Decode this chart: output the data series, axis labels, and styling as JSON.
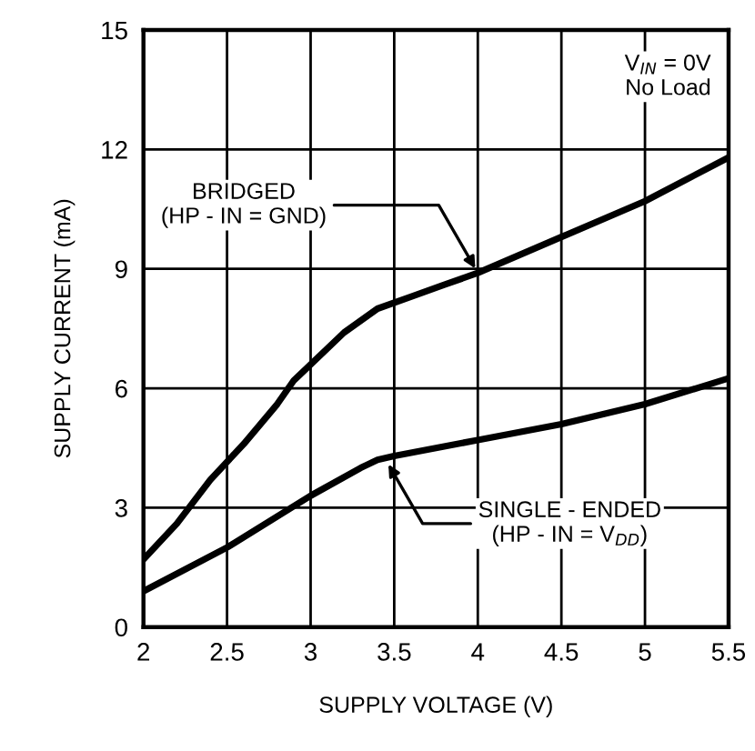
{
  "chart_data": {
    "type": "line",
    "xlabel": "SUPPLY VOLTAGE (V)",
    "ylabel": "SUPPLY CURRENT (mA)",
    "xlim": [
      2,
      5.5
    ],
    "xticks": [
      2,
      2.5,
      3,
      3.5,
      4,
      4.5,
      5,
      5.5
    ],
    "ylim": [
      0,
      15
    ],
    "yticks": [
      0,
      3,
      6,
      9,
      12,
      15
    ],
    "grid": true,
    "line_style": "solid",
    "marker": "none",
    "series": [
      {
        "color": "#000000",
        "x": [
          2,
          2.2,
          2.4,
          2.6,
          2.8,
          2.9,
          3.0,
          3.2,
          3.4,
          3.6,
          3.8,
          4.0,
          4.5,
          5.0,
          5.5
        ],
        "values": [
          1.7,
          2.6,
          3.7,
          4.6,
          5.6,
          6.2,
          6.6,
          7.4,
          8.0,
          8.3,
          8.6,
          8.9,
          9.8,
          10.7,
          11.8
        ]
      },
      {
        "color": "#000000",
        "x": [
          2,
          2.5,
          3.0,
          3.3,
          3.4,
          3.5,
          4.0,
          4.5,
          5.0,
          5.5
        ],
        "values": [
          0.9,
          2.0,
          3.3,
          4.0,
          4.2,
          4.3,
          4.7,
          5.1,
          5.6,
          6.25
        ]
      }
    ],
    "annotations": [
      {
        "text": "BRIDGED\n(HP - IN = GND)",
        "x": 4.0,
        "y": 8.9
      },
      {
        "text": "SINGLE - ENDED\n(HP - IN = V$_{DD}$)",
        "x": 3.45,
        "y": 4.2
      },
      "V$_{IN}$ = 0V\nNo Load"
    ]
  }
}
